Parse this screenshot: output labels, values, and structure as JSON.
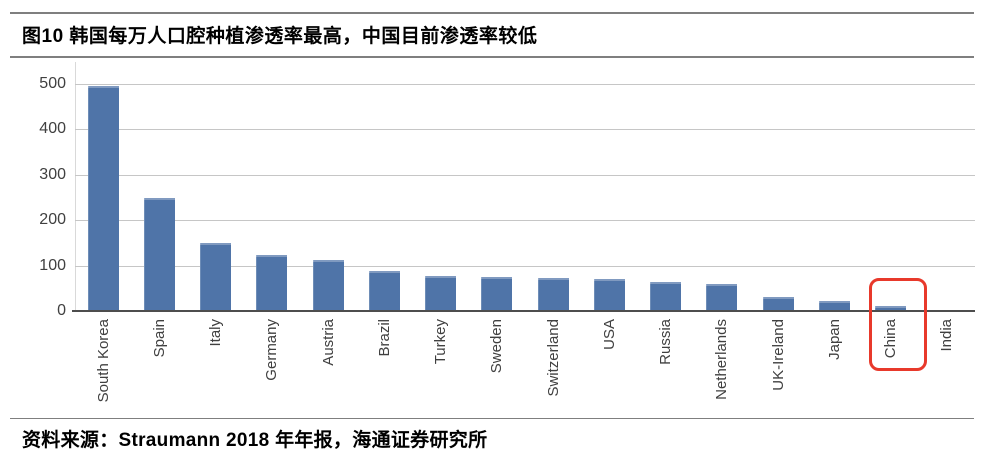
{
  "figure": {
    "title": "图10 韩国每万人口腔种植渗透率最高，中国目前渗透率较低",
    "source": "资料来源：Straumann 2018 年年报，海通证券研究所"
  },
  "chart_data": {
    "type": "bar",
    "title": "图10 韩国每万人口腔种植渗透率最高，中国目前渗透率较低",
    "categories": [
      "South Korea",
      "Spain",
      "Italy",
      "Germany",
      "Austria",
      "Brazil",
      "Turkey",
      "Sweden",
      "Switzerland",
      "USA",
      "Russia",
      "Netherlands",
      "UK-Ireland",
      "Japan",
      "China",
      "India"
    ],
    "values": [
      495,
      250,
      150,
      124,
      112,
      88,
      78,
      75,
      72,
      70,
      64,
      59,
      30,
      22,
      10,
      2
    ],
    "xlabel": "",
    "ylabel": "",
    "ylim": [
      0,
      500
    ],
    "yticks": [
      0,
      100,
      200,
      300,
      400,
      500
    ],
    "grid": true,
    "legend": "none",
    "bar_color": "#4f74a8",
    "grid_color": "#c6c6c6",
    "axis_color": "#4d4d4d",
    "tick_label_color": "#404040",
    "highlight": {
      "category": "China",
      "box_color": "#e8392b"
    }
  }
}
